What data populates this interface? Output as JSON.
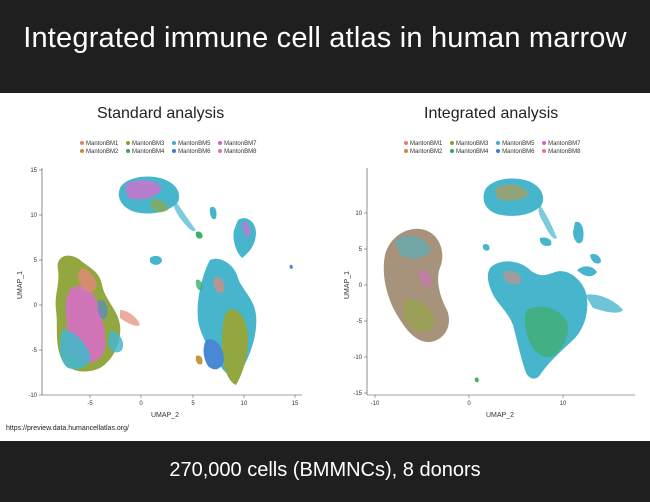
{
  "title": "Integrated immune cell atlas in human marrow",
  "footer": "270,000 cells (BMMNCs), 8 donors",
  "source_url": "https://preview.data.humancellatlas.org/",
  "legend_colors": {
    "MantonBM1": "#e0806e",
    "MantonBM2": "#c09030",
    "MantonBM3": "#8aa030",
    "MantonBM4": "#30a860",
    "MantonBM5": "#38b0c8",
    "MantonBM6": "#3a7fd0",
    "MantonBM7": "#d860c8",
    "MantonBM8": "#e870b0"
  },
  "panels": [
    {
      "title": "Standard analysis",
      "xlabel": "UMAP_2",
      "ylabel": "UMAP_1",
      "legend_rows": [
        [
          "MantonBM1",
          "MantonBM3",
          "MantonBM5",
          "MantonBM7"
        ],
        [
          "MantonBM2",
          "MantonBM4",
          "MantonBM6",
          "MantonBM8"
        ]
      ],
      "x_ticks": [
        "-5",
        "0",
        "5",
        "10",
        "15"
      ],
      "y_ticks": [
        "15",
        "10",
        "5",
        "0",
        "-5",
        "-10"
      ]
    },
    {
      "title": "Integrated analysis",
      "xlabel": "UMAP_2",
      "ylabel": "UMAP_1",
      "legend_rows": [
        [
          "MantonBM1",
          "MantonBM3",
          "MantonBM5",
          "MantonBM7"
        ],
        [
          "MantonBM2",
          "MantonBM4",
          "MantonBM6",
          "MantonBM8"
        ]
      ],
      "x_ticks": [
        "-10",
        "0",
        "10"
      ],
      "y_ticks": [
        "10",
        "5",
        "0",
        "-5",
        "-10",
        "-15"
      ]
    }
  ]
}
